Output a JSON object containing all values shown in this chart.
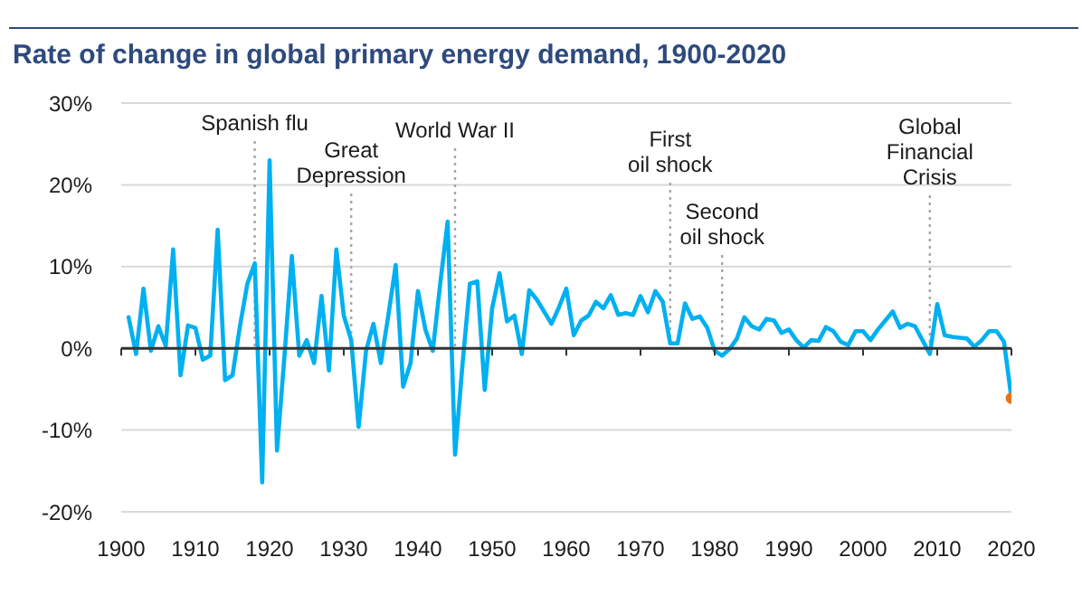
{
  "chart_data": {
    "type": "line",
    "title": "Rate of change in global primary energy demand, 1900-2020",
    "x": [
      1901,
      1902,
      1903,
      1904,
      1905,
      1906,
      1907,
      1908,
      1909,
      1910,
      1911,
      1912,
      1913,
      1914,
      1915,
      1916,
      1917,
      1918,
      1919,
      1920,
      1921,
      1922,
      1923,
      1924,
      1925,
      1926,
      1927,
      1928,
      1929,
      1930,
      1931,
      1932,
      1933,
      1934,
      1935,
      1936,
      1937,
      1938,
      1939,
      1940,
      1941,
      1942,
      1943,
      1944,
      1945,
      1946,
      1947,
      1948,
      1949,
      1950,
      1951,
      1952,
      1953,
      1954,
      1955,
      1956,
      1957,
      1958,
      1959,
      1960,
      1961,
      1962,
      1963,
      1964,
      1965,
      1966,
      1967,
      1968,
      1969,
      1970,
      1971,
      1972,
      1973,
      1974,
      1975,
      1976,
      1977,
      1978,
      1979,
      1980,
      1981,
      1982,
      1983,
      1984,
      1985,
      1986,
      1987,
      1988,
      1989,
      1990,
      1991,
      1992,
      1993,
      1994,
      1995,
      1996,
      1997,
      1998,
      1999,
      2000,
      2001,
      2002,
      2003,
      2004,
      2005,
      2006,
      2007,
      2008,
      2009,
      2010,
      2011,
      2012,
      2013,
      2014,
      2015,
      2016,
      2017,
      2018,
      2019,
      2020
    ],
    "series": [
      {
        "color": "#00b0f0",
        "values": [
          3.8,
          -0.7,
          7.3,
          -0.3,
          2.7,
          0.3,
          12.1,
          -3.3,
          2.8,
          2.5,
          -1.4,
          -0.9,
          14.5,
          -3.9,
          -3.3,
          2.7,
          7.9,
          10.4,
          -16.4,
          23.0,
          -12.5,
          -1,
          11.3,
          -0.9,
          1.0,
          -1.8,
          6.4,
          -2.7,
          12.1,
          4,
          1,
          -9.6,
          -0.3,
          3.0,
          -1.8,
          4,
          10.2,
          -4.7,
          -1.8,
          7.0,
          2.3,
          -0.3,
          7.9,
          15.5,
          -13.0,
          -2,
          7.9,
          8.2,
          -5.1,
          4.9,
          9.2,
          3.3,
          4.0,
          -0.7,
          7.1,
          6.0,
          4.5,
          3.0,
          5.0,
          7.3,
          1.6,
          3.4,
          4.0,
          5.7,
          4.9,
          6.5,
          4.1,
          4.3,
          4.1,
          6.4,
          4.4,
          7.0,
          5.7,
          0.6,
          0.6,
          5.5,
          3.6,
          3.9,
          2.5,
          -0.3,
          -0.9,
          -0.1,
          1.2,
          3.8,
          2.7,
          2.3,
          3.6,
          3.4,
          1.9,
          2.3,
          1.0,
          0.1,
          1.0,
          0.9,
          2.6,
          2.1,
          0.8,
          0.4,
          2.1,
          2.1,
          1.0,
          2.3,
          3.4,
          4.5,
          2.5,
          3.0,
          2.7,
          1.0,
          -0.7,
          5.4,
          1.6,
          1.4,
          1.3,
          1.2,
          0.2,
          1.0,
          2.1,
          2.1,
          0.8,
          -6.1
        ]
      },
      {
        "type": "scatter",
        "x": [
          2020
        ],
        "color": "#e8731a",
        "values": [
          -6.1
        ],
        "marker": "circle"
      }
    ],
    "xlim": [
      1900,
      2020
    ],
    "xticks": [
      1900,
      1910,
      1920,
      1930,
      1940,
      1950,
      1960,
      1970,
      1980,
      1990,
      2000,
      2010,
      2020
    ],
    "ylim": [
      -20,
      30
    ],
    "yticks": [
      {
        "value": -20,
        "label": "-20%"
      },
      {
        "value": -10,
        "label": "-10%"
      },
      {
        "value": 0,
        "label": "0%"
      },
      {
        "value": 10,
        "label": "10%"
      },
      {
        "value": 20,
        "label": "20%"
      },
      {
        "value": 30,
        "label": "30%"
      }
    ],
    "grid": "y",
    "marker": "none",
    "line_style": "solid",
    "ref_lines": [
      {
        "axis": "x",
        "value": 1918,
        "label": "Spanish flu",
        "color": "#a6a6a6",
        "line_style": "dotted"
      },
      {
        "axis": "x",
        "value": 1931,
        "label": "Great Depression",
        "color": "#a6a6a6",
        "line_style": "dotted"
      },
      {
        "axis": "x",
        "value": 1945,
        "label": "World War II",
        "color": "#a6a6a6",
        "line_style": "dotted"
      },
      {
        "axis": "x",
        "value": 1974,
        "label": "First oil shock",
        "color": "#a6a6a6",
        "line_style": "dotted"
      },
      {
        "axis": "x",
        "value": 1981,
        "label": "Second oil shock",
        "color": "#a6a6a6",
        "line_style": "dotted"
      },
      {
        "axis": "x",
        "value": 2009,
        "label": "Global Financial Crisis",
        "color": "#a6a6a6",
        "line_style": "dotted"
      }
    ]
  }
}
